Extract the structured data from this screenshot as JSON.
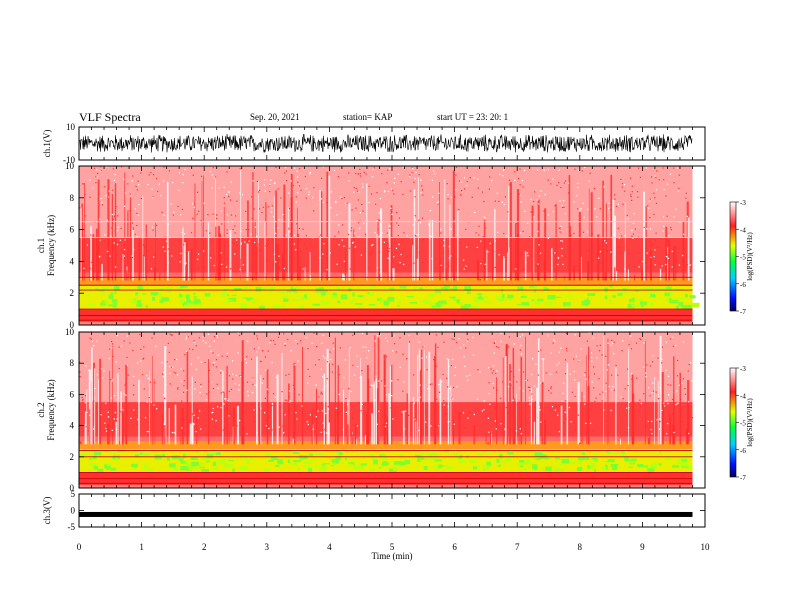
{
  "header": {
    "title": "VLF Spectra",
    "date": "Sep. 20, 2021",
    "station": "station= KAP",
    "start": "start  UT  =   23: 20: 1"
  },
  "colors": {
    "spectrum": [
      "#000060",
      "#0020ff",
      "#00c8ff",
      "#00ff40",
      "#e6ff00",
      "#ff2020",
      "#ffffff"
    ],
    "trace": "#000000"
  },
  "chart_data": [
    {
      "type": "line",
      "panel": "ch1-waveform",
      "ylabel": "ch.1(V)",
      "ylim": [
        -10,
        10
      ],
      "yticks": [
        "10",
        "-10"
      ],
      "xlim": [
        0,
        10
      ],
      "approx_amplitude": 6
    },
    {
      "type": "heatmap",
      "panel": "ch1-spectrogram",
      "ylabel": "ch.1 Frequency  (kHz)",
      "ylim": [
        0,
        10
      ],
      "yticks": [
        "0",
        "2",
        "4",
        "6",
        "8",
        "10"
      ],
      "xlim": [
        0,
        9.8
      ],
      "colorbar": {
        "label": "log(PSD)(V²/Hz)",
        "range": [
          -7,
          -3
        ],
        "ticks": [
          "-3",
          "-4",
          "-5",
          "-6",
          "-7"
        ]
      },
      "bands_khz": [
        0.3,
        0.6,
        1.0,
        2.2,
        2.5,
        3.0,
        5.5,
        6.5
      ]
    },
    {
      "type": "heatmap",
      "panel": "ch2-spectrogram",
      "ylabel": "ch.2 Frequency  (kHz)",
      "ylim": [
        0,
        10
      ],
      "yticks": [
        "0",
        "2",
        "4",
        "6",
        "8",
        "10"
      ],
      "xlim": [
        0,
        9.8
      ],
      "colorbar": {
        "label": "log(PSD)(V²/Hz)",
        "range": [
          -7,
          -3
        ],
        "ticks": [
          "-3",
          "-4",
          "-5",
          "-6",
          "-7"
        ]
      },
      "bands_khz": [
        0.3,
        0.6,
        1.0,
        2.0,
        2.4
      ]
    },
    {
      "type": "line",
      "panel": "ch3-waveform",
      "ylabel": "ch.3(V)",
      "ylim": [
        -5,
        5
      ],
      "yticks": [
        "5",
        "0",
        "-5"
      ],
      "xlim": [
        0,
        10
      ],
      "approx_level": -1.2,
      "xlabel": "Time  (min)",
      "xticks": [
        "0",
        "1",
        "2",
        "3",
        "4",
        "5",
        "6",
        "7",
        "8",
        "9",
        "10"
      ]
    }
  ]
}
